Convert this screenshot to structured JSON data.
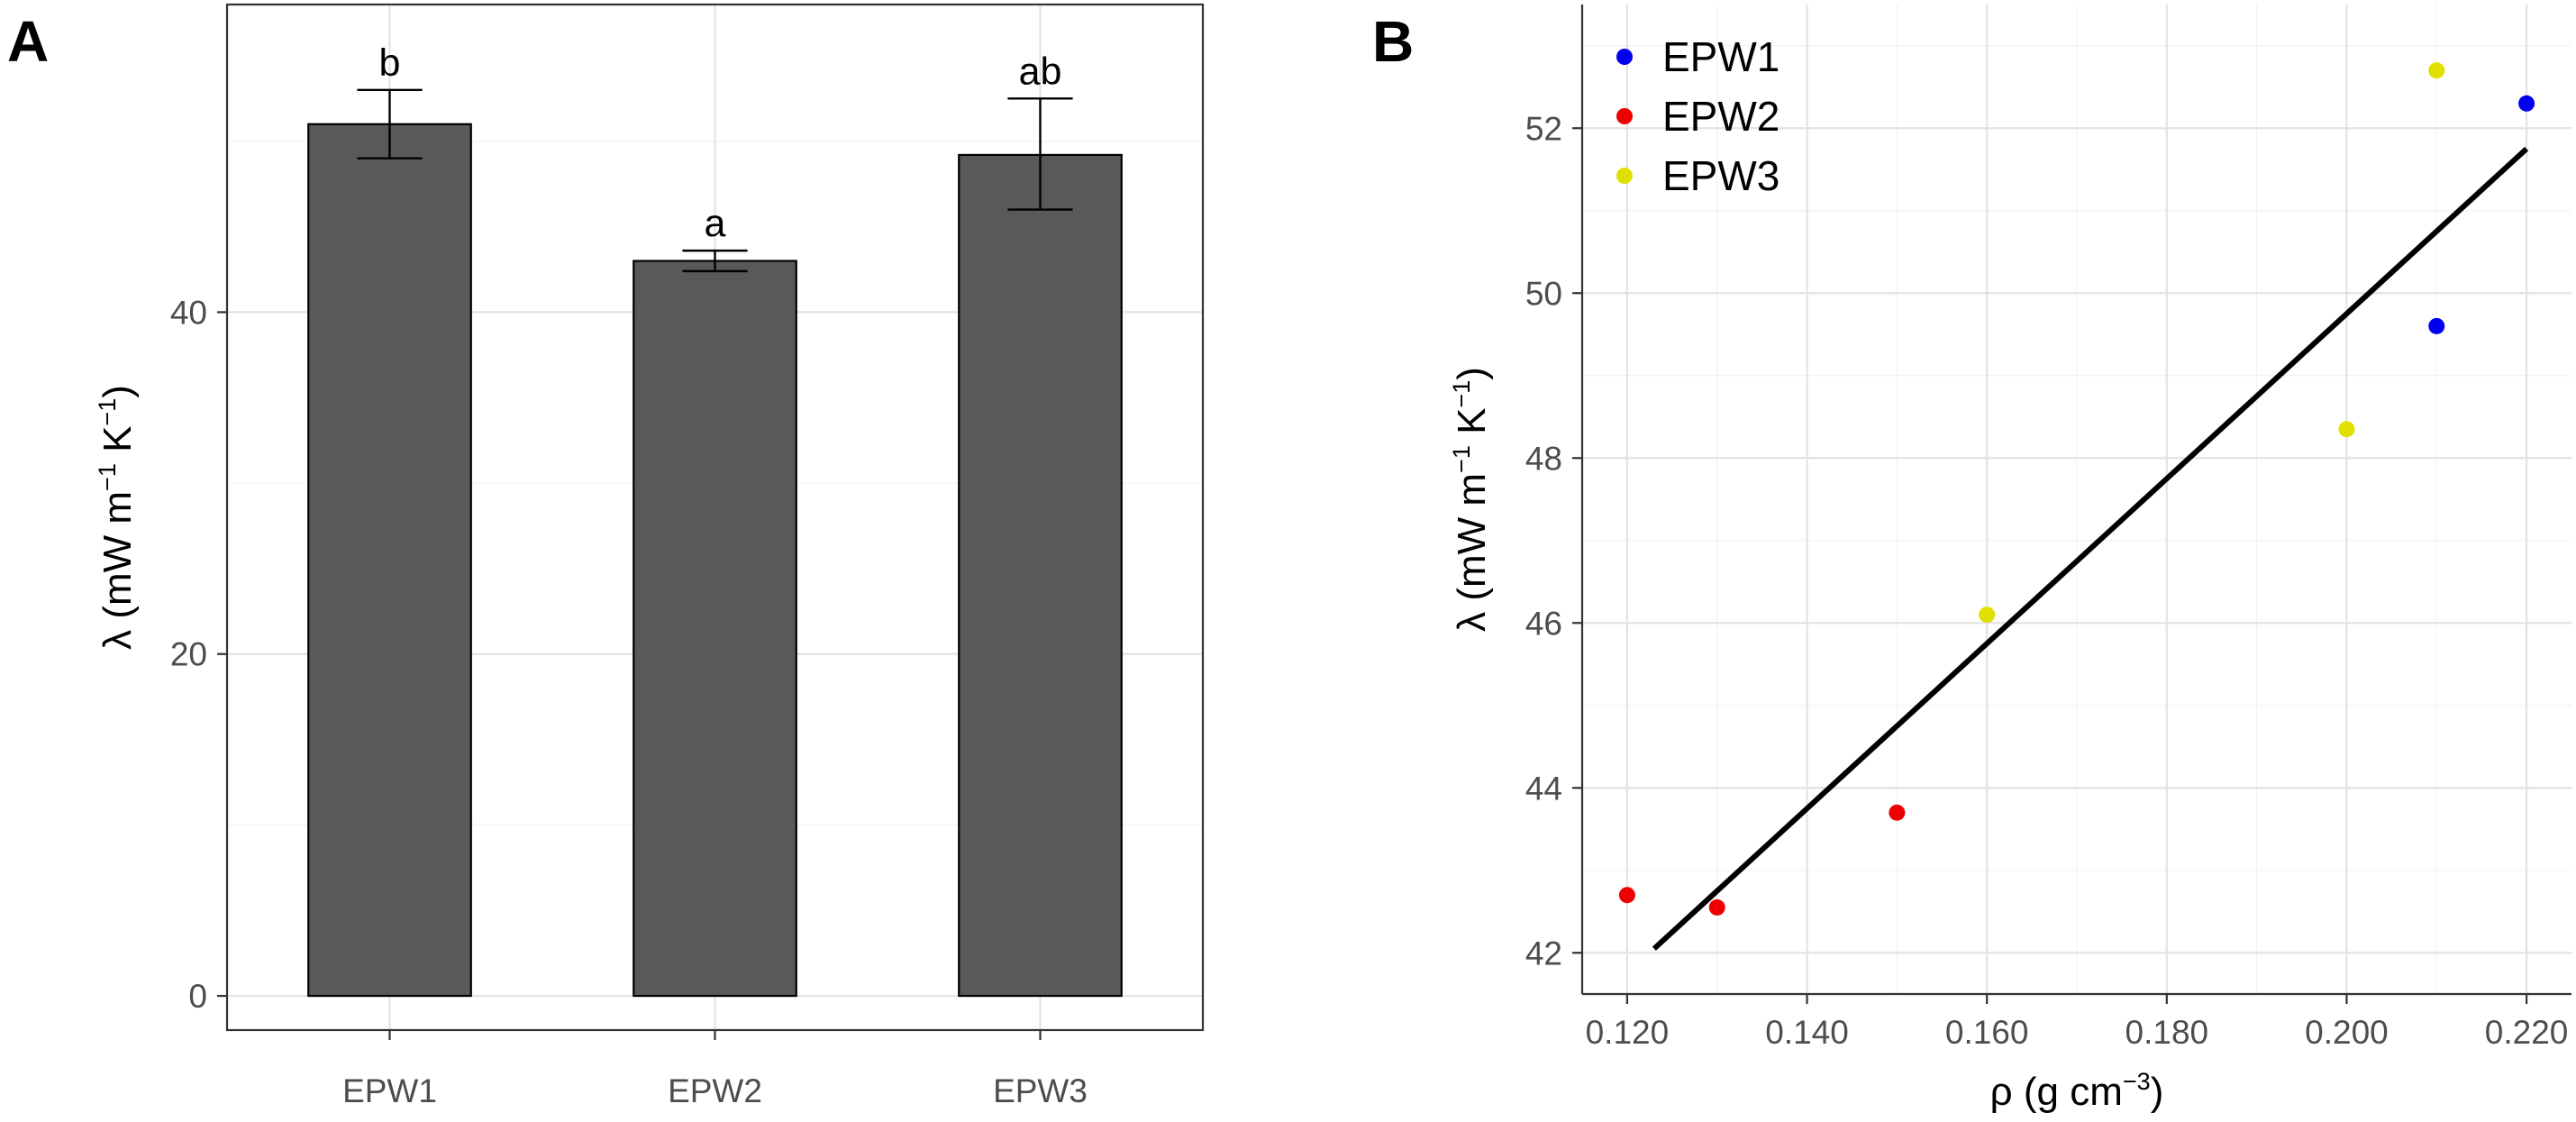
{
  "chart_data": [
    {
      "panel": "A",
      "type": "bar",
      "categories": [
        "EPW1",
        "EPW2",
        "EPW3"
      ],
      "values": [
        51.0,
        43.0,
        49.2
      ],
      "errors": [
        {
          "low": 49.0,
          "high": 53.0
        },
        {
          "low": 42.4,
          "high": 43.6
        },
        {
          "low": 46.0,
          "high": 52.5
        }
      ],
      "significance": [
        "b",
        "a",
        "ab"
      ],
      "ylabel": {
        "main": "λ (mW m",
        "sup1": "−1",
        "mid": " K",
        "sup2": "−1",
        "end": ")"
      },
      "ylim": [
        -2,
        58
      ],
      "yticks": [
        0,
        20,
        40
      ],
      "bar_color": "#595959"
    },
    {
      "panel": "B",
      "type": "scatter",
      "series": [
        {
          "name": "EPW1",
          "color": "#0000ee",
          "points": [
            [
              0.21,
              49.6
            ],
            [
              0.22,
              52.3
            ]
          ]
        },
        {
          "name": "EPW2",
          "color": "#ee0000",
          "points": [
            [
              0.12,
              42.7
            ],
            [
              0.13,
              42.55
            ],
            [
              0.15,
              43.7
            ]
          ]
        },
        {
          "name": "EPW3",
          "color": "#e0e000",
          "points": [
            [
              0.16,
              46.1
            ],
            [
              0.2,
              48.35
            ],
            [
              0.21,
              52.7
            ]
          ]
        }
      ],
      "fit_line": {
        "x": [
          0.123,
          0.22
        ],
        "y": [
          42.05,
          51.75
        ],
        "color": "#000000"
      },
      "xlabel": {
        "main": "ρ (g cm",
        "sup": "−3",
        "end": ")"
      },
      "ylabel": {
        "main": "λ (mW m",
        "sup1": "−1",
        "mid": " K",
        "sup2": "−1",
        "end": ")"
      },
      "xlim": [
        0.115,
        0.225
      ],
      "ylim": [
        41.5,
        53.5
      ],
      "xticks": [
        0.12,
        0.14,
        0.16,
        0.18,
        0.2,
        0.22
      ],
      "xtick_labels": [
        "0.120",
        "0.140",
        "0.160",
        "0.180",
        "0.200",
        "0.220"
      ],
      "yticks": [
        42,
        44,
        46,
        48,
        50,
        52
      ],
      "legend_position": "top-left"
    }
  ],
  "labels": {
    "panel_a": "A",
    "panel_b": "B"
  }
}
